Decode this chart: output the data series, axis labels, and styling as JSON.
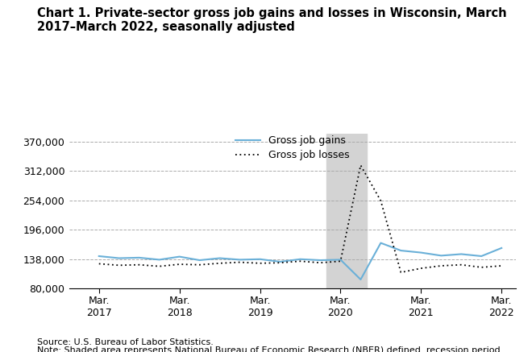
{
  "title": "Chart 1. Private-sector gross job gains and losses in Wisconsin, March\n2017–March 2022, seasonally adjusted",
  "title_fontsize": 10.5,
  "legend_entries": [
    "Gross job gains",
    "Gross job losses"
  ],
  "gains_color": "#6ab0d8",
  "losses_color": "#000000",
  "background_color": "#ffffff",
  "grid_color": "#aaaaaa",
  "shade_color": "#d3d3d3",
  "shade_xstart": 2020.0,
  "shade_xend": 2020.5,
  "yticks": [
    80000,
    138000,
    196000,
    254000,
    312000,
    370000
  ],
  "ylim": [
    80000,
    385000
  ],
  "xlim": [
    2016.8,
    2022.35
  ],
  "xtick_positions": [
    2017.17,
    2018.17,
    2019.17,
    2020.17,
    2021.17,
    2022.17
  ],
  "xtick_labels": [
    "Mar.\n2017",
    "Mar.\n2018",
    "Mar.\n2019",
    "Mar.\n2020",
    "Mar.\n2021",
    "Mar.\n2022"
  ],
  "source_text": "Source: U.S. Bureau of Labor Statistics.",
  "note_text": "Note: Shaded area represents National Bureau of Economic Research (NBER) defined  recession period.",
  "quarters": [
    2017.17,
    2017.42,
    2017.67,
    2017.92,
    2018.17,
    2018.42,
    2018.67,
    2018.92,
    2019.17,
    2019.42,
    2019.67,
    2019.92,
    2020.17,
    2020.42,
    2020.67,
    2020.92,
    2021.17,
    2021.42,
    2021.67,
    2021.92,
    2022.17
  ],
  "gross_job_gains": [
    144000,
    140000,
    141000,
    137000,
    143000,
    136000,
    140000,
    137000,
    138000,
    133000,
    138000,
    136000,
    137000,
    98000,
    170000,
    155000,
    151000,
    145000,
    148000,
    144000,
    160000
  ],
  "gross_job_losses": [
    129000,
    126000,
    127000,
    124000,
    128000,
    127000,
    130000,
    132000,
    130000,
    131000,
    134000,
    131000,
    134000,
    323000,
    253000,
    112000,
    120000,
    125000,
    127000,
    122000,
    125000
  ]
}
